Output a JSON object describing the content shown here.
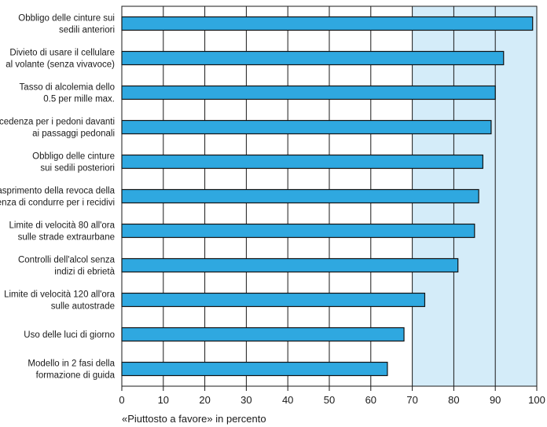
{
  "chart_data": {
    "type": "bar",
    "orientation": "horizontal",
    "categories": [
      [
        "Obbligo delle cinture sui",
        "sedili anteriori"
      ],
      [
        "Divieto di usare il cellulare",
        "al volante (senza vivavoce)"
      ],
      [
        "Tasso di alcolemia dello",
        "0.5 per mille max."
      ],
      [
        "Precedenza per i pedoni davanti",
        "ai passaggi pedonali"
      ],
      [
        "Obbligo delle cinture",
        "sui sedili posteriori"
      ],
      [
        "Inasprimento della revoca della",
        "licenza di condurre per i recidivi"
      ],
      [
        "Limite di velocità 80 all'ora",
        "sulle strade extraurbane"
      ],
      [
        "Controlli dell'alcol senza",
        "indizi di ebrietà"
      ],
      [
        "Limite di velocità 120 all'ora",
        "sulle autostrade"
      ],
      [
        "Uso delle luci di giorno"
      ],
      [
        "Modello in 2 fasi della",
        "formazione di guida"
      ]
    ],
    "values": [
      99,
      92,
      90,
      89,
      87,
      86,
      85,
      81,
      73,
      68,
      64
    ],
    "xlabel": "«Piuttosto a favore» in percento",
    "xlim": [
      0,
      100
    ],
    "xticks": [
      0,
      10,
      20,
      30,
      40,
      50,
      60,
      70,
      80,
      90,
      100
    ],
    "grid": true,
    "colors": {
      "bar": "#2fa8e0",
      "bar_outline": "#111111",
      "plot_background": "#ffffff",
      "shaded_region": "#d4ecf9",
      "shaded_from": 70,
      "gridline": "#1a1a1a"
    }
  }
}
